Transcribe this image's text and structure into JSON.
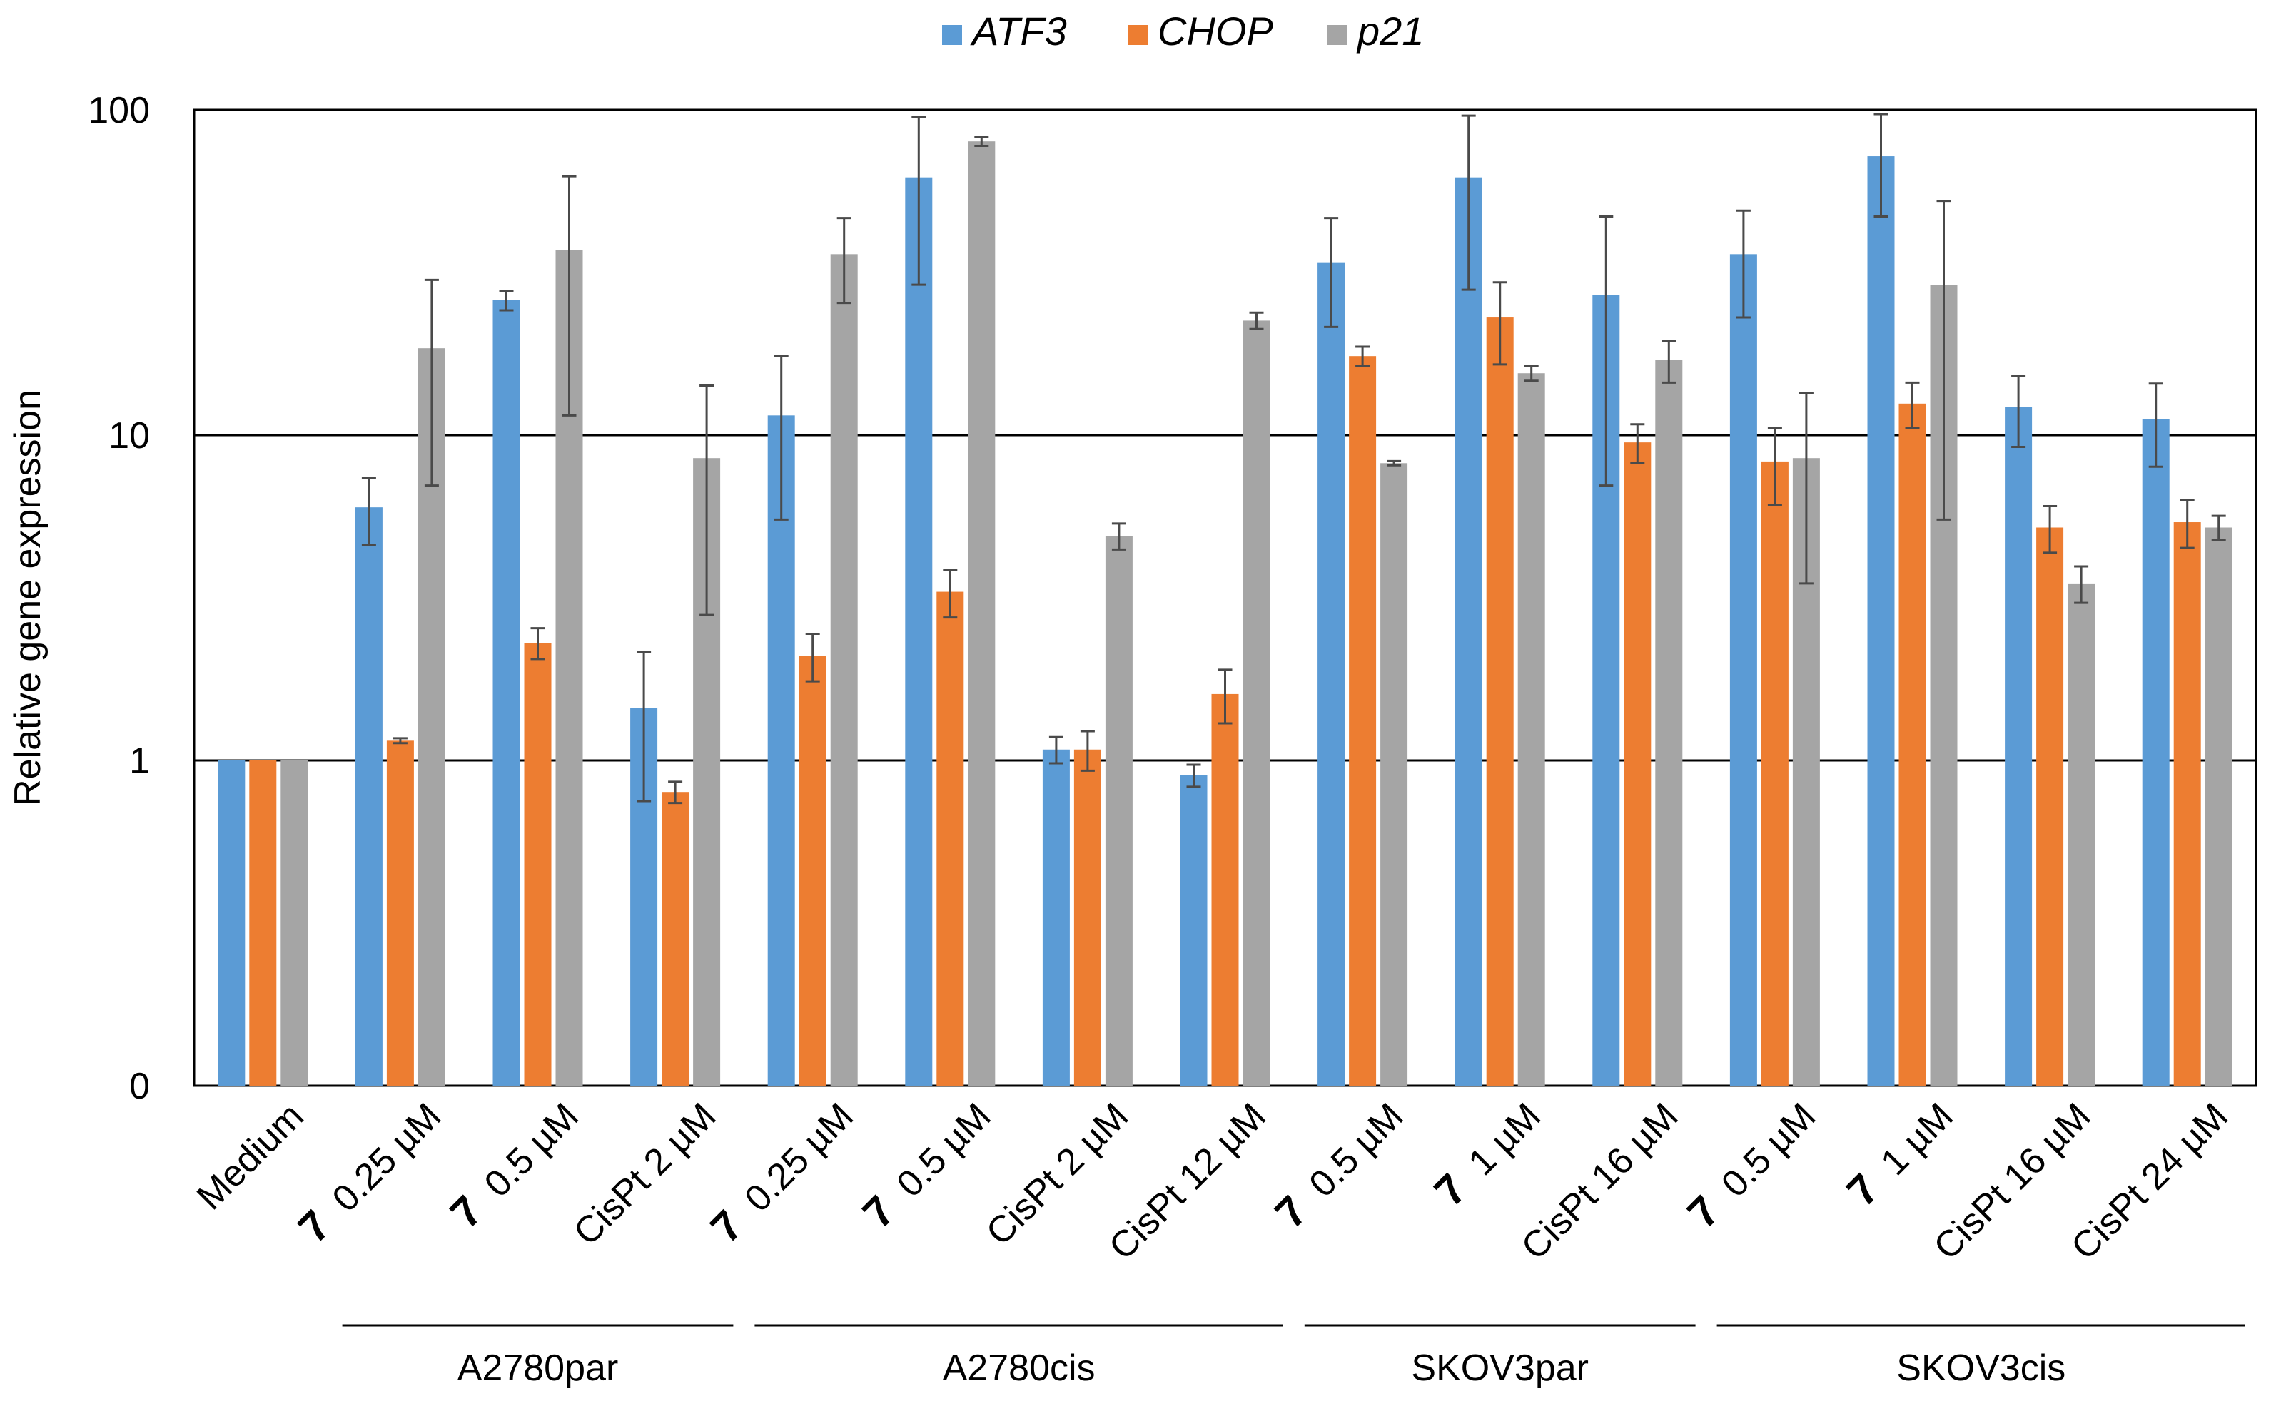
{
  "chart_data": {
    "type": "bar",
    "ylabel": "Relative gene expression",
    "yscale": "log",
    "ylim": [
      0.1,
      100
    ],
    "yticks": [
      {
        "value": 0.1,
        "label": "0"
      },
      {
        "value": 1,
        "label": "1"
      },
      {
        "value": 10,
        "label": "10"
      },
      {
        "value": 100,
        "label": "100"
      }
    ],
    "legend_position": "top-center",
    "grid": "major horizontal",
    "categories": [
      {
        "compound": "",
        "dose": "Medium"
      },
      {
        "compound": "7",
        "dose": "0.25 µM"
      },
      {
        "compound": "7",
        "dose": "0.5 µM"
      },
      {
        "compound": "",
        "dose": "CisPt 2 µM"
      },
      {
        "compound": "7",
        "dose": "0.25 µM"
      },
      {
        "compound": "7",
        "dose": "0.5 µM"
      },
      {
        "compound": "",
        "dose": "CisPt 2 µM"
      },
      {
        "compound": "",
        "dose": "CisPt 12 µM"
      },
      {
        "compound": "7",
        "dose": "0.5 µM"
      },
      {
        "compound": "7",
        "dose": "1 µM"
      },
      {
        "compound": "",
        "dose": "CisPt 16 µM"
      },
      {
        "compound": "7",
        "dose": "0.5 µM"
      },
      {
        "compound": "7",
        "dose": "1 µM"
      },
      {
        "compound": "",
        "dose": "CisPt 16 µM"
      },
      {
        "compound": "",
        "dose": "CisPt 24 µM"
      }
    ],
    "groups": [
      {
        "label": "A2780par",
        "from": 1,
        "to": 3
      },
      {
        "label": "A2780cis",
        "from": 4,
        "to": 7
      },
      {
        "label": "SKOV3par",
        "from": 8,
        "to": 10
      },
      {
        "label": "SKOV3cis",
        "from": 11,
        "to": 14
      }
    ],
    "series": [
      {
        "name": "ATF3",
        "color": "#5b9bd5",
        "values": [
          1.0,
          6.0,
          26,
          1.45,
          11.5,
          62,
          1.08,
          0.9,
          34,
          62,
          27,
          36,
          72,
          12.2,
          11.2
        ],
        "errors": [
          0,
          1.4,
          1.8,
          0.7,
          6.0,
          33,
          0.1,
          0.07,
          12.5,
          34,
          20,
          13,
          25,
          3.0,
          3.2
        ]
      },
      {
        "name": "CHOP",
        "color": "#ed7d31",
        "values": [
          1.0,
          1.15,
          2.3,
          0.8,
          2.1,
          3.3,
          1.08,
          1.6,
          17.5,
          23,
          9.5,
          8.3,
          12.5,
          5.2,
          5.4
        ],
        "errors": [
          0,
          0.02,
          0.25,
          0.06,
          0.35,
          0.55,
          0.15,
          0.3,
          1.2,
          6.5,
          1.3,
          2.2,
          2.0,
          0.85,
          0.9
        ]
      },
      {
        "name": "p21",
        "color": "#a5a5a5",
        "values": [
          1.0,
          18.5,
          37,
          8.5,
          36,
          80,
          4.9,
          22.5,
          8.2,
          15.5,
          17,
          8.5,
          29,
          3.5,
          5.2
        ],
        "errors": [
          0,
          11.5,
          25.5,
          5.7,
          10.5,
          2.5,
          0.45,
          1.3,
          0.12,
          0.8,
          2.5,
          5.0,
          23.5,
          0.45,
          0.45
        ]
      }
    ]
  }
}
